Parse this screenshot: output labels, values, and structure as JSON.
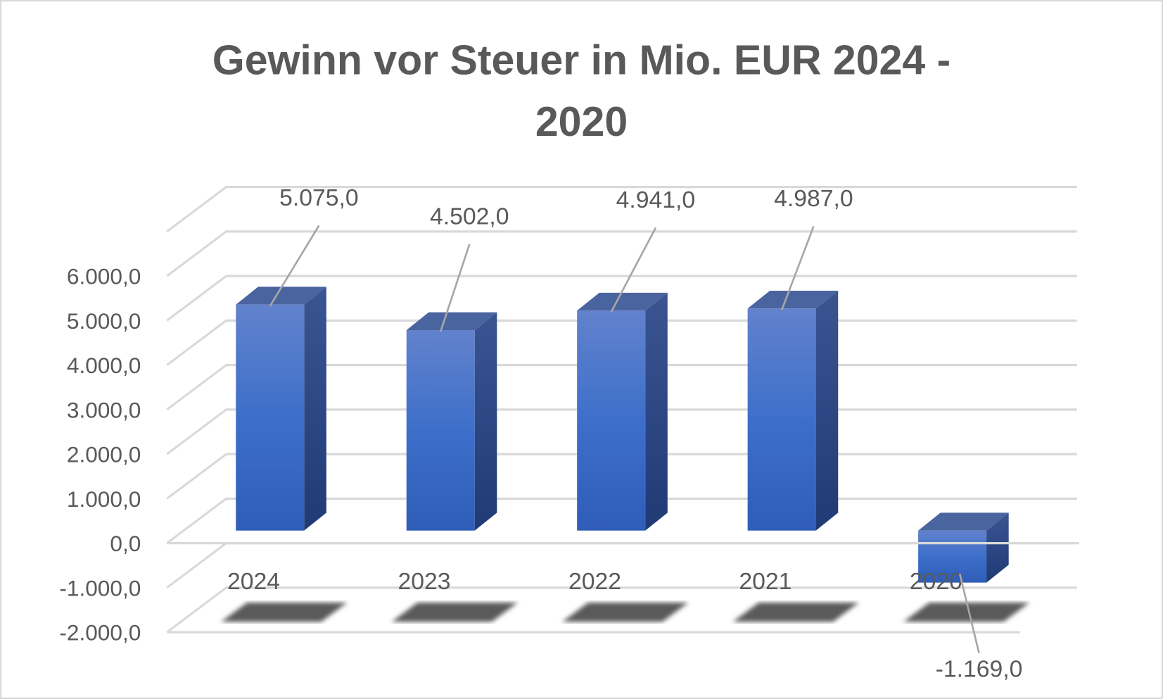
{
  "chart_data": {
    "type": "bar",
    "style": "3d-column",
    "title": "Gewinn vor Steuer in Mio. EUR 2024 - 2020",
    "title_lines": [
      "Gewinn vor Steuer in Mio. EUR 2024 -",
      "2020"
    ],
    "categories": [
      "2024",
      "2023",
      "2022",
      "2021",
      "2020"
    ],
    "values": [
      5075.0,
      4502.0,
      4941.0,
      4987.0,
      -1169.0
    ],
    "data_labels": [
      "5.075,0",
      "4.502,0",
      "4.941,0",
      "4.987,0",
      "-1.169,0"
    ],
    "ylim": [
      -2000,
      7000
    ],
    "yticks": [
      6000,
      5000,
      4000,
      3000,
      2000,
      1000,
      0,
      -1000,
      -2000
    ],
    "ytick_labels": [
      "6.000,0",
      "5.000,0",
      "4.000,0",
      "3.000,0",
      "2.000,0",
      "1.000,0",
      "0,0",
      "-1.000,0",
      "-2.000,0"
    ],
    "xlabel": "",
    "ylabel": "",
    "grid": true,
    "legend": "none",
    "colors": {
      "bar": "#4472c4",
      "bar_side": "#2a4a8a",
      "bar_top": "#4a64a0",
      "grid": "#d9d9d9",
      "text": "#595959",
      "shadow": "#5a5a5a"
    }
  }
}
